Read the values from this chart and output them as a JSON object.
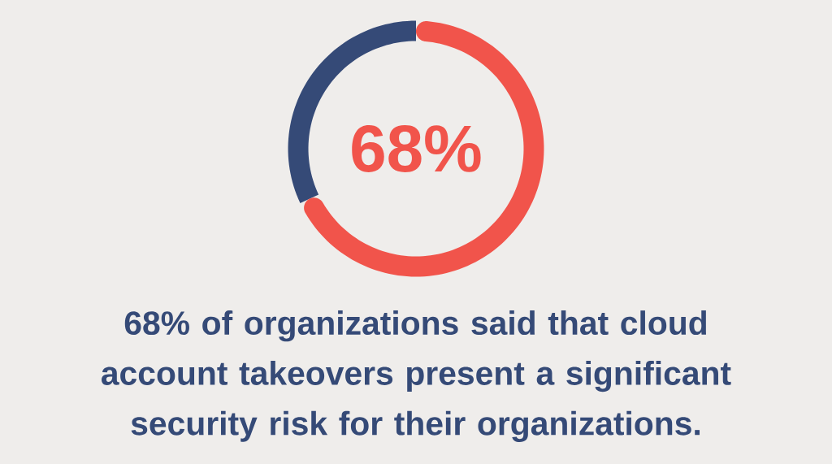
{
  "chart_data": {
    "type": "donut",
    "categories": [
      null,
      null
    ],
    "values": [
      68,
      32
    ],
    "colors": [
      "#f1544b",
      "#354a77"
    ],
    "value_labels": [
      "68%",
      null
    ],
    "annotations": [
      "68% of organizations said that cloud account takeovers present a significant security risk for their organizations."
    ]
  }
}
